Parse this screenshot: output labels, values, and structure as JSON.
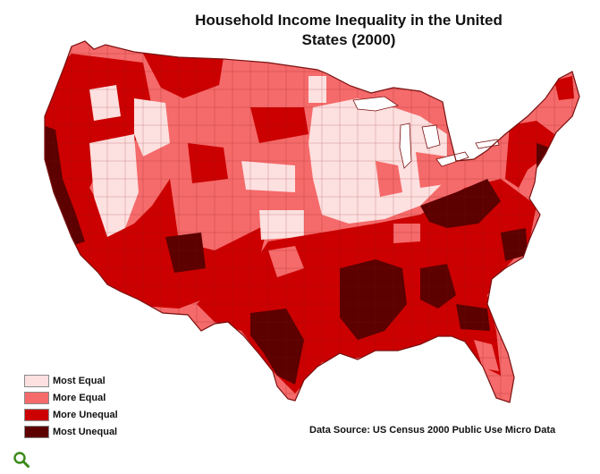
{
  "title": {
    "line1": "Household Income Inequality in the United",
    "line2": "States (2000)"
  },
  "legend": {
    "items": [
      {
        "label": "Most Equal",
        "color": "#fde0e0"
      },
      {
        "label": "More Equal",
        "color": "#f56a6a"
      },
      {
        "label": "More Unequal",
        "color": "#cc0000"
      },
      {
        "label": "Most Unequal",
        "color": "#5c0000"
      }
    ]
  },
  "source": "Data Source: US Census 2000 Public Use Micro Data",
  "colors": {
    "outline": "#7a1010",
    "zoom_icon": "#3a8a1a"
  },
  "icons": {
    "zoom": "magnifier-icon"
  }
}
